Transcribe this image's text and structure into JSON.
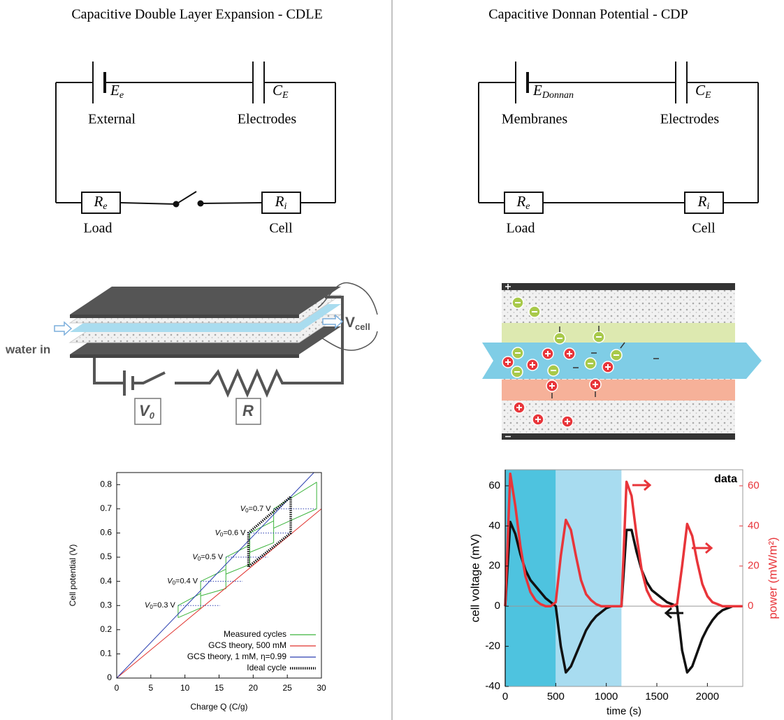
{
  "left": {
    "title": "Capacitive Double Layer Expansion - CDLE",
    "circuit": {
      "source": {
        "symbol": "E",
        "sub": "e",
        "label": "External"
      },
      "capacitor": {
        "symbol": "C",
        "sub": "E",
        "label": "Electrodes"
      },
      "load": {
        "symbol": "R",
        "sub": "e",
        "label": "Load"
      },
      "cell": {
        "symbol": "R",
        "sub": "i",
        "label": "Cell"
      }
    },
    "schematic": {
      "inlet": "water in",
      "cell_voltage": {
        "symbol": "V",
        "sub": "cell"
      },
      "source": {
        "symbol": "V",
        "sub": "0"
      },
      "resistor": "R"
    }
  },
  "right": {
    "title": "Capacitive Donnan Potential - CDP",
    "circuit": {
      "source": {
        "symbol": "E",
        "sub": "Donnan",
        "label": "Membranes"
      },
      "capacitor": {
        "symbol": "C",
        "sub": "E",
        "label": "Electrodes"
      },
      "load": {
        "symbol": "R",
        "sub": "e",
        "label": "Load"
      },
      "cell": {
        "symbol": "R",
        "sub": "i",
        "label": "Cell"
      }
    }
  },
  "chart_data": [
    {
      "type": "line",
      "xlabel": "Charge Q (C/g)",
      "ylabel": "Cell potential (V)",
      "xlim": [
        0,
        30
      ],
      "xticks": [
        0,
        5,
        10,
        15,
        20,
        25,
        30
      ],
      "ylim": [
        0,
        0.85
      ],
      "yticks": [
        0,
        0.1,
        0.2,
        0.3,
        0.4,
        0.5,
        0.6,
        0.7,
        0.8
      ],
      "line_width": 1,
      "legend": "lower right",
      "series": [
        {
          "name": "Measured cycles",
          "color": "#3cb43c",
          "x": [
            9,
            9,
            12.3,
            12.3,
            9,
            null,
            12.3,
            12.3,
            16,
            16,
            12.3,
            null,
            16,
            16,
            19.5,
            19.5,
            16,
            null,
            19.5,
            19.5,
            23,
            23,
            19.5,
            null,
            23,
            23,
            29.3,
            29.3,
            23
          ],
          "values": [
            0.25,
            0.3,
            0.35,
            0.29,
            0.25,
            null,
            0.34,
            0.4,
            0.45,
            0.37,
            0.34,
            null,
            0.43,
            0.5,
            0.55,
            0.47,
            0.43,
            null,
            0.52,
            0.6,
            0.65,
            0.56,
            0.52,
            null,
            0.62,
            0.7,
            0.81,
            0.7,
            0.62
          ]
        },
        {
          "name": "GCS theory, 500 mM",
          "color": "#e0302c",
          "x": [
            0,
            30
          ],
          "values": [
            0,
            0.7
          ]
        },
        {
          "name": "GCS theory, 1 mM, η=0.99",
          "color": "#2b3fb0",
          "x": [
            0,
            28.9
          ],
          "values": [
            0,
            0.85
          ]
        },
        {
          "name": "Ideal cycle",
          "color": "#111111",
          "style": "dotted",
          "x": [
            19.3,
            19.3,
            25.5,
            25.5,
            19.3
          ],
          "values": [
            0.46,
            0.6,
            0.75,
            0.6,
            0.46
          ]
        }
      ],
      "annotations": [
        {
          "label": [
            "V",
            "0",
            "=0.3 V"
          ],
          "x": 9,
          "y": 0.3
        },
        {
          "label": [
            "V",
            "0",
            "=0.4 V"
          ],
          "x": 12.3,
          "y": 0.4
        },
        {
          "label": [
            "V",
            "0",
            "=0.5 V"
          ],
          "x": 16,
          "y": 0.5
        },
        {
          "label": [
            "V",
            "0",
            "=0.6 V"
          ],
          "x": 19.3,
          "y": 0.6
        },
        {
          "label": [
            "V",
            "0",
            "=0.7 V"
          ],
          "x": 23,
          "y": 0.7
        }
      ]
    },
    {
      "type": "line",
      "xlabel": "time (s)",
      "ylabel": "cell voltage (mV)",
      "y2label": "power (mW/m²)",
      "annotation": "data",
      "zero_line": true,
      "line_width": 3.5,
      "y2_color": "#e8353a",
      "xlim": [
        0,
        2350
      ],
      "xticks": [
        0,
        500,
        1000,
        1500,
        2000
      ],
      "ylim": [
        -40,
        68
      ],
      "yticks": [
        -40,
        -20,
        0,
        20,
        40,
        60
      ],
      "y2lim": [
        -40,
        68
      ],
      "y2ticks": [
        0,
        20,
        40,
        60
      ],
      "shaded": [
        {
          "x": [
            0,
            500
          ],
          "color": "#4ec3df"
        },
        {
          "x": [
            500,
            1150
          ],
          "color": "#a8dcf0"
        }
      ],
      "x": [
        0,
        50,
        100,
        150,
        200,
        250,
        300,
        350,
        400,
        450,
        500,
        550,
        600,
        650,
        700,
        750,
        800,
        850,
        900,
        950,
        1000,
        1050,
        1100,
        1150,
        1200,
        1250,
        1300,
        1350,
        1400,
        1450,
        1500,
        1550,
        1600,
        1650,
        1700,
        1750,
        1800,
        1850,
        1900,
        1950,
        2000,
        2050,
        2100,
        2150,
        2200,
        2250,
        2300,
        2350
      ],
      "series": [
        {
          "color": "#111111",
          "values": [
            0,
            42,
            36,
            26,
            18,
            13,
            10,
            7,
            4,
            2,
            0,
            -20,
            -33,
            -30,
            -24,
            -18,
            -12,
            -8,
            -5,
            -3,
            -1,
            0,
            0,
            0,
            38,
            38,
            27,
            18,
            12,
            8,
            6,
            4,
            2,
            1,
            0,
            -22,
            -33,
            -30,
            -23,
            -16,
            -11,
            -7,
            -4,
            -2,
            -1,
            0,
            0,
            0
          ]
        },
        {
          "color": "#e8353a",
          "axis": "y2",
          "values": [
            0,
            66,
            50,
            30,
            15,
            7,
            3,
            1,
            0,
            0,
            2,
            25,
            43,
            38,
            25,
            13,
            6,
            3,
            1,
            0,
            0,
            0,
            0,
            0,
            62,
            55,
            35,
            18,
            8,
            3,
            1,
            0,
            0,
            0,
            1,
            20,
            41,
            35,
            22,
            11,
            5,
            2,
            1,
            0,
            0,
            0,
            0,
            0
          ]
        }
      ]
    }
  ]
}
